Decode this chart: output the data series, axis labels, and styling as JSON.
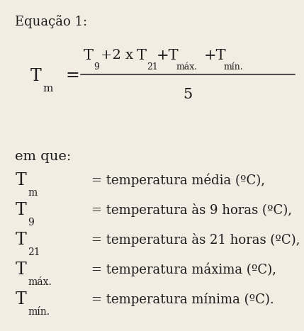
{
  "bg_color": "#f2ede3",
  "text_color": "#1c1c1c",
  "figsize": [
    4.29,
    4.67
  ],
  "dpi": 100,
  "title": "Equação 1:",
  "em_que": "em que:",
  "eq_Tm_main": "T",
  "eq_Tm_sub": "m",
  "numerator": "T  +2 x T   +T        +T",
  "denom": "5",
  "def_T_labels": [
    "T",
    "T",
    "T",
    "T",
    "T"
  ],
  "def_T_subs": [
    "m",
    "9",
    "21",
    "máx.",
    "mín."
  ],
  "def_descs": [
    "= temperatura média (ºC),",
    "= temperatura às 9 horas (ºC),",
    "= temperatura às 21 horas (ºC),",
    "= temperatura máxima (ºC),",
    "= temperatura mínima (ºC)."
  ]
}
